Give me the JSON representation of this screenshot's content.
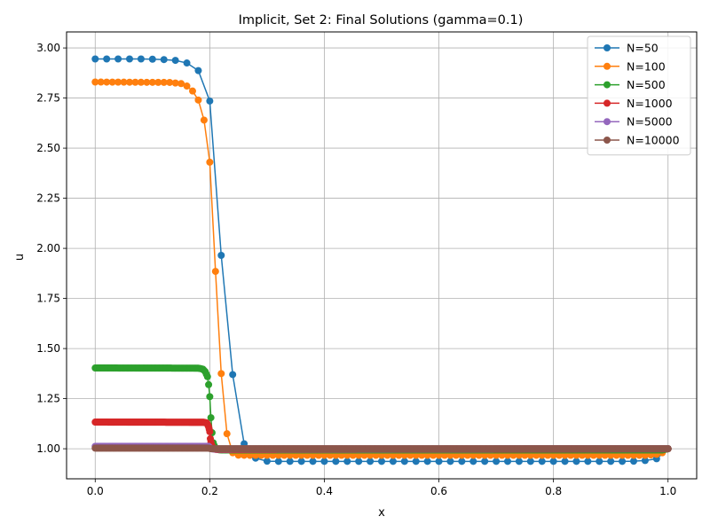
{
  "chart_data": {
    "type": "line",
    "title": "Implicit, Set 2: Final Solutions (gamma=0.1)",
    "xlabel": "x",
    "ylabel": "u",
    "xlim": [
      -0.05,
      1.05
    ],
    "ylim": [
      0.85,
      3.08
    ],
    "xticks": [
      0.0,
      0.2,
      0.4,
      0.6,
      0.8,
      1.0
    ],
    "xtick_labels": [
      "0.0",
      "0.2",
      "0.4",
      "0.6",
      "0.8",
      "1.0"
    ],
    "yticks": [
      1.0,
      1.25,
      1.5,
      1.75,
      2.0,
      2.25,
      2.5,
      2.75,
      3.0
    ],
    "ytick_labels": [
      "1.00",
      "1.25",
      "1.50",
      "1.75",
      "2.00",
      "2.25",
      "2.50",
      "2.75",
      "3.00"
    ],
    "grid": true,
    "legend_position": "top-right",
    "series": [
      {
        "name": "N=50",
        "color": "#1f77b4",
        "marker": "circle",
        "points": [
          [
            0.0,
            2.945
          ],
          [
            0.02,
            2.945
          ],
          [
            0.04,
            2.945
          ],
          [
            0.06,
            2.945
          ],
          [
            0.08,
            2.945
          ],
          [
            0.1,
            2.944
          ],
          [
            0.12,
            2.942
          ],
          [
            0.14,
            2.938
          ],
          [
            0.16,
            2.925
          ],
          [
            0.18,
            2.887
          ],
          [
            0.2,
            2.735
          ],
          [
            0.22,
            1.965
          ],
          [
            0.24,
            1.37
          ],
          [
            0.26,
            1.025
          ],
          [
            0.28,
            0.953
          ],
          [
            0.3,
            0.938
          ],
          [
            0.32,
            0.937
          ],
          [
            0.34,
            0.937
          ],
          [
            0.36,
            0.937
          ],
          [
            0.38,
            0.937
          ],
          [
            0.4,
            0.937
          ],
          [
            0.42,
            0.937
          ],
          [
            0.44,
            0.937
          ],
          [
            0.46,
            0.937
          ],
          [
            0.48,
            0.937
          ],
          [
            0.5,
            0.937
          ],
          [
            0.52,
            0.937
          ],
          [
            0.54,
            0.937
          ],
          [
            0.56,
            0.937
          ],
          [
            0.58,
            0.937
          ],
          [
            0.6,
            0.937
          ],
          [
            0.62,
            0.937
          ],
          [
            0.64,
            0.937
          ],
          [
            0.66,
            0.937
          ],
          [
            0.68,
            0.937
          ],
          [
            0.7,
            0.937
          ],
          [
            0.72,
            0.937
          ],
          [
            0.74,
            0.937
          ],
          [
            0.76,
            0.937
          ],
          [
            0.78,
            0.937
          ],
          [
            0.8,
            0.937
          ],
          [
            0.82,
            0.937
          ],
          [
            0.84,
            0.937
          ],
          [
            0.86,
            0.937
          ],
          [
            0.88,
            0.937
          ],
          [
            0.9,
            0.937
          ],
          [
            0.92,
            0.937
          ],
          [
            0.94,
            0.938
          ],
          [
            0.96,
            0.941
          ],
          [
            0.98,
            0.95
          ],
          [
            1.0,
            1.0
          ]
        ]
      },
      {
        "name": "N=100",
        "color": "#ff7f0e",
        "marker": "circle",
        "generator": {
          "n": 100,
          "plateau": 2.83,
          "knots": [
            [
              0.0,
              2.83
            ],
            [
              0.13,
              2.828
            ],
            [
              0.15,
              2.822
            ],
            [
              0.16,
              2.81
            ],
            [
              0.17,
              2.785
            ],
            [
              0.18,
              2.74
            ],
            [
              0.19,
              2.64
            ],
            [
              0.2,
              2.43
            ],
            [
              0.21,
              1.885
            ],
            [
              0.22,
              1.375
            ],
            [
              0.23,
              1.075
            ],
            [
              0.24,
              0.98
            ],
            [
              0.25,
              0.968
            ],
            [
              0.27,
              0.967
            ],
            [
              0.96,
              0.967
            ],
            [
              0.98,
              0.972
            ],
            [
              0.99,
              0.98
            ],
            [
              1.0,
              1.0
            ]
          ]
        }
      },
      {
        "name": "N=500",
        "color": "#2ca02c",
        "marker": "circle",
        "generator": {
          "n": 500,
          "knots": [
            [
              0.0,
              1.403
            ],
            [
              0.18,
              1.402
            ],
            [
              0.188,
              1.397
            ],
            [
              0.192,
              1.385
            ],
            [
              0.196,
              1.36
            ],
            [
              0.198,
              1.32
            ],
            [
              0.2,
              1.26
            ],
            [
              0.202,
              1.155
            ],
            [
              0.204,
              1.08
            ],
            [
              0.206,
              1.03
            ],
            [
              0.21,
              1.0
            ],
            [
              0.215,
              0.995
            ],
            [
              0.22,
              0.994
            ],
            [
              0.99,
              0.994
            ],
            [
              1.0,
              1.0
            ]
          ]
        }
      },
      {
        "name": "N=1000",
        "color": "#d62728",
        "marker": "circle",
        "generator": {
          "n": 1000,
          "knots": [
            [
              0.0,
              1.133
            ],
            [
              0.19,
              1.132
            ],
            [
              0.195,
              1.128
            ],
            [
              0.198,
              1.11
            ],
            [
              0.2,
              1.085
            ],
            [
              0.201,
              1.05
            ],
            [
              0.203,
              1.02
            ],
            [
              0.206,
              1.0
            ],
            [
              0.21,
              0.997
            ],
            [
              1.0,
              1.0
            ]
          ]
        }
      },
      {
        "name": "N=5000",
        "color": "#9467bd",
        "marker": "circle",
        "generator": {
          "n": 5000,
          "knots": [
            [
              0.0,
              1.012
            ],
            [
              0.198,
              1.012
            ],
            [
              0.2,
              1.006
            ],
            [
              0.202,
              1.0
            ],
            [
              0.205,
              0.999
            ],
            [
              1.0,
              1.0
            ]
          ]
        }
      },
      {
        "name": "N=10000",
        "color": "#8c564b",
        "marker": "circle",
        "generator": {
          "n": 10000,
          "knots": [
            [
              0.0,
              1.003
            ],
            [
              0.199,
              1.003
            ],
            [
              0.2,
              1.001
            ],
            [
              0.202,
              1.0
            ],
            [
              1.0,
              1.0
            ]
          ]
        }
      }
    ]
  }
}
